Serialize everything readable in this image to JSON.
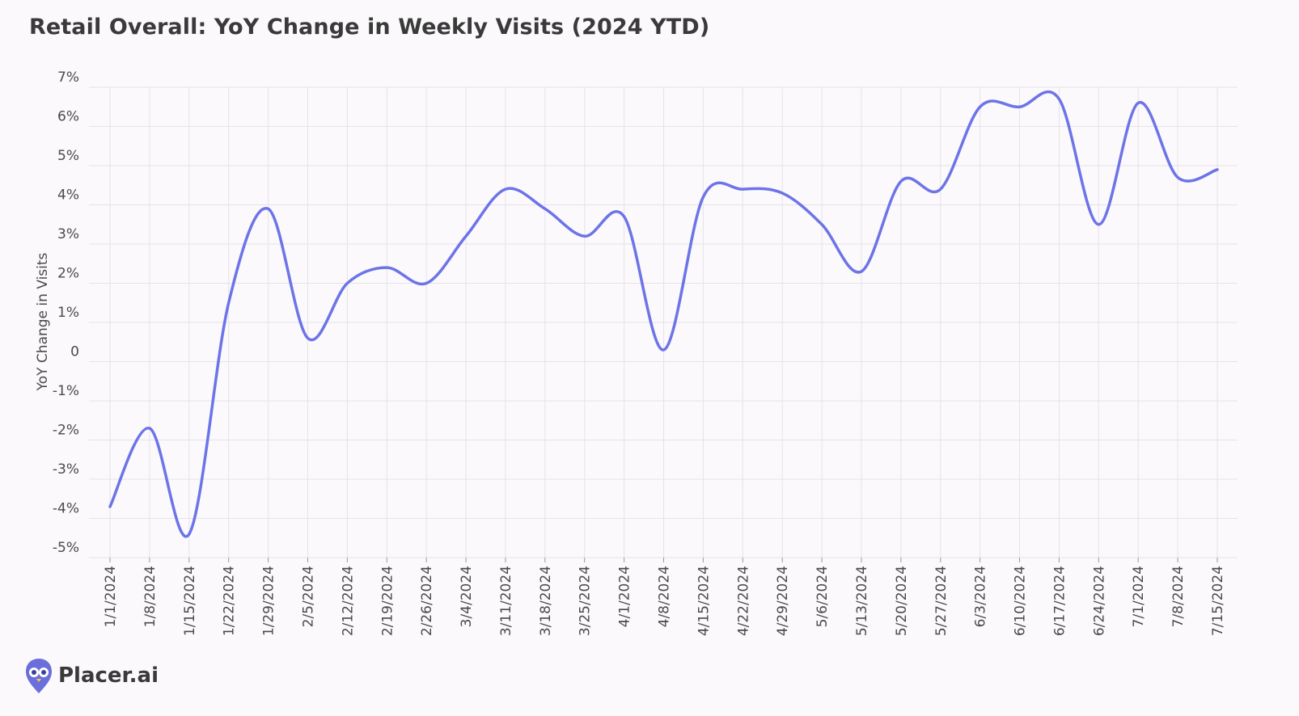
{
  "chart_data": {
    "type": "line",
    "title": "Retail Overall: YoY Change in Weekly Visits (2024 YTD)",
    "ylabel": "YoY Change in Visits",
    "xlabel": "",
    "ylim": [
      -5,
      7
    ],
    "yticks": [
      -5,
      -4,
      -3,
      -2,
      -1,
      0,
      1,
      2,
      3,
      4,
      5,
      6,
      7
    ],
    "ytick_labels": [
      "-5%",
      "-4%",
      "-3%",
      "-2%",
      "-1%",
      "0",
      "1%",
      "2%",
      "3%",
      "4%",
      "5%",
      "6%",
      "7%"
    ],
    "grid": true,
    "categories": [
      "1/1/2024",
      "1/8/2024",
      "1/15/2024",
      "1/22/2024",
      "1/29/2024",
      "2/5/2024",
      "2/12/2024",
      "2/19/2024",
      "2/26/2024",
      "3/4/2024",
      "3/11/2024",
      "3/18/2024",
      "3/25/2024",
      "4/1/2024",
      "4/8/2024",
      "4/15/2024",
      "4/22/2024",
      "4/29/2024",
      "5/6/2024",
      "5/13/2024",
      "5/20/2024",
      "5/27/2024",
      "6/3/2024",
      "6/10/2024",
      "6/17/2024",
      "6/24/2024",
      "7/1/2024",
      "7/8/2024",
      "7/15/2024"
    ],
    "series": [
      {
        "values": [
          -3.7,
          -1.7,
          -4.4,
          1.5,
          3.9,
          0.6,
          2.0,
          2.4,
          2.0,
          3.2,
          4.4,
          3.9,
          3.2,
          3.7,
          0.3,
          4.2,
          4.4,
          4.3,
          3.5,
          2.3,
          4.6,
          4.4,
          6.5,
          6.5,
          6.7,
          3.5,
          6.6,
          4.7,
          4.9
        ],
        "color": "#6c74e8"
      }
    ]
  },
  "logo": {
    "text": "Placer.ai",
    "color": "#6b6fdc"
  }
}
